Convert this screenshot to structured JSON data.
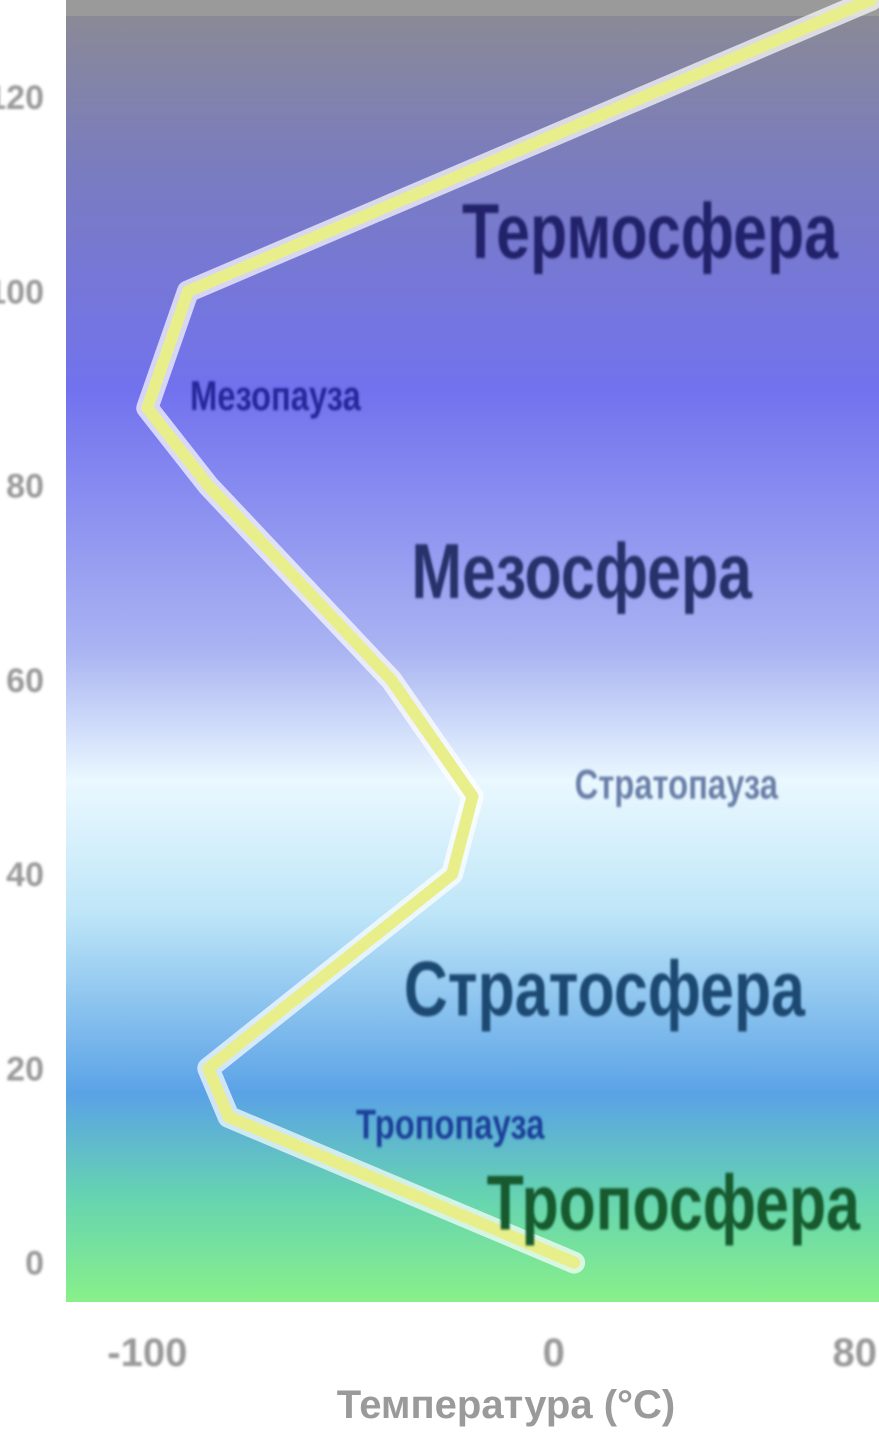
{
  "chart_data": {
    "type": "line",
    "title": "",
    "xlabel": "Температура (°C)",
    "ylabel": "",
    "xlim": [
      -120,
      80
    ],
    "ylim": [
      -2,
      130
    ],
    "x_ticks": [
      "-100",
      "0",
      "80"
    ],
    "y_ticks": [
      "0",
      "20",
      "40",
      "60",
      "80",
      "100",
      "120"
    ],
    "series": [
      {
        "name": "",
        "color": "#e8ef8a",
        "points": [
          {
            "x": 5,
            "y": 0
          },
          {
            "x": -80,
            "y": 15
          },
          {
            "x": -85,
            "y": 20
          },
          {
            "x": -25,
            "y": 40
          },
          {
            "x": -20,
            "y": 48
          },
          {
            "x": -40,
            "y": 60
          },
          {
            "x": -85,
            "y": 80
          },
          {
            "x": -100,
            "y": 88
          },
          {
            "x": -90,
            "y": 100
          },
          {
            "x": 78,
            "y": 130
          }
        ]
      }
    ],
    "layers": [
      {
        "label": "Термосфера",
        "altitude": 106,
        "color": "#23246a"
      },
      {
        "label": "Мезопауза",
        "altitude": 89,
        "color": "#25269a"
      },
      {
        "label": "Мезосфера",
        "altitude": 71,
        "color": "#25306a"
      },
      {
        "label": "Стратопауза",
        "altitude": 49,
        "color": "#6a7fa8"
      },
      {
        "label": "Стратосфера",
        "altitude": 28,
        "color": "#1e4a72"
      },
      {
        "label": "Тропопауза",
        "altitude": 14,
        "color": "#1a3f9a"
      },
      {
        "label": "Тропосфера",
        "altitude": 6,
        "color": "#145a2e"
      }
    ],
    "background_colors": {
      "top": "#8a8c94",
      "upper": "#7878e6",
      "middle": "#b8c8f4",
      "stratopause": "#e6f8ff",
      "lower": "#6aaee8",
      "bottom": "#7eea9a"
    },
    "grid": false
  }
}
